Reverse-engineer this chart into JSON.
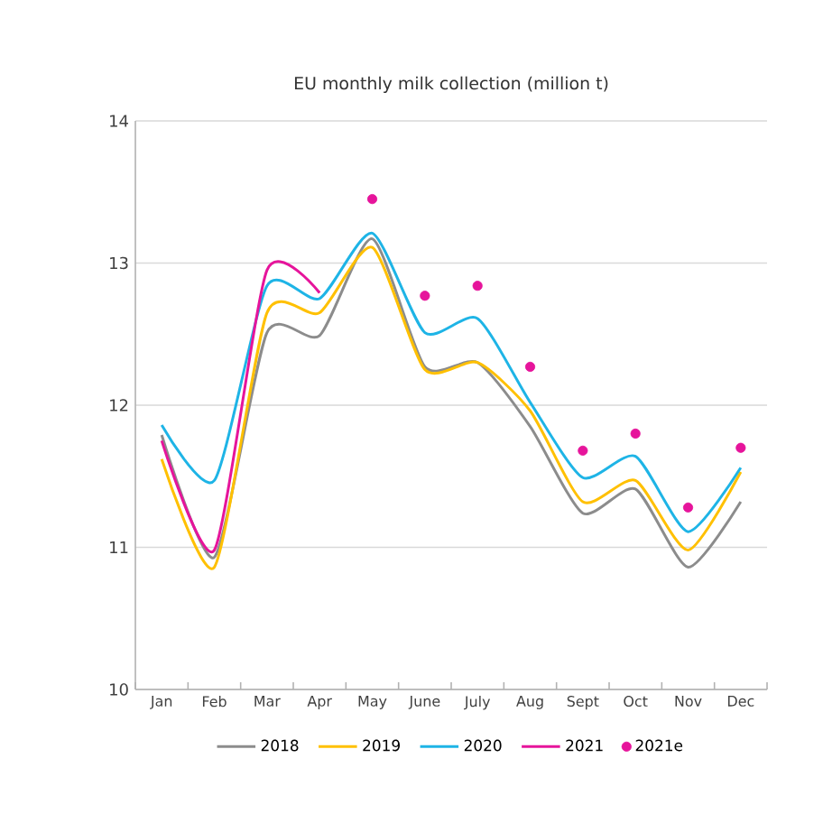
{
  "chart_data": {
    "type": "line",
    "title": "EU monthly milk collection (million t)",
    "categories": [
      "Jan",
      "Feb",
      "Mar",
      "Apr",
      "May",
      "June",
      "July",
      "Aug",
      "Sept",
      "Oct",
      "Nov",
      "Dec"
    ],
    "series": [
      {
        "name": "2018",
        "color": "#8c8c8c",
        "values": [
          11.79,
          10.93,
          12.51,
          12.49,
          13.17,
          12.27,
          12.3,
          11.85,
          11.24,
          11.41,
          10.86,
          11.32
        ]
      },
      {
        "name": "2019",
        "color": "#ffc000",
        "values": [
          11.62,
          10.86,
          12.65,
          12.65,
          13.11,
          12.25,
          12.3,
          11.96,
          11.32,
          11.47,
          10.98,
          11.53
        ]
      },
      {
        "name": "2020",
        "color": "#1eb4e6",
        "values": [
          11.86,
          11.47,
          12.84,
          12.75,
          13.21,
          12.51,
          12.61,
          12.02,
          11.49,
          11.64,
          11.11,
          11.56
        ]
      },
      {
        "name": "2021",
        "color": "#e6149b",
        "values": [
          11.75,
          10.98,
          12.95,
          12.79,
          null,
          null,
          null,
          null,
          null,
          null,
          null,
          null
        ]
      },
      {
        "name": "2021e",
        "type": "scatter",
        "marker": "circle",
        "color": "#e6149b",
        "values": [
          null,
          null,
          null,
          null,
          13.45,
          12.77,
          12.84,
          12.27,
          11.68,
          11.8,
          11.28,
          11.7
        ]
      }
    ],
    "ylim": [
      10,
      14
    ],
    "yticks": [
      10,
      11,
      12,
      13,
      14
    ],
    "grid": "y",
    "legend": "bottom",
    "marker": "none"
  }
}
